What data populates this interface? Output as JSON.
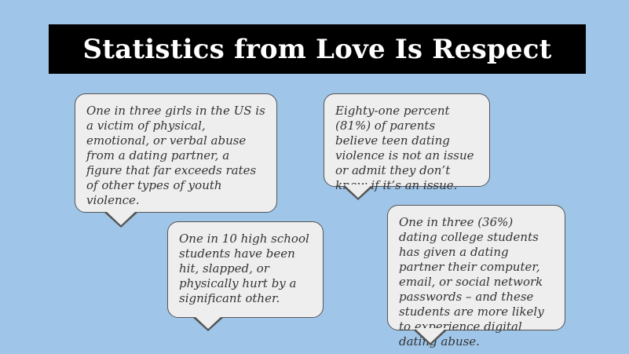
{
  "title": "Statistics from Love Is Respect",
  "colors": {
    "background": "#9fc5e8",
    "title_bar": "#000000",
    "title_text": "#ffffff",
    "bubble_fill": "#eeeeee",
    "bubble_border": "#555555",
    "bubble_text": "#333333"
  },
  "bubbles": [
    {
      "text": "One in three girls in the US is a victim of physical, emotional, or verbal abuse from a dating partner, a figure that far exceeds rates of other types of youth violence."
    },
    {
      "text": "Eighty-one percent (81%) of parents believe teen dating violence is not an issue or admit they don’t know if it’s an issue."
    },
    {
      "text": "One in 10 high school students have been hit, slapped, or physically hurt by a significant other."
    },
    {
      "text": "One in three (36%) dating college students has given a dating partner their computer, email, or social network passwords – and these students are more likely to experience digital dating abuse."
    }
  ]
}
